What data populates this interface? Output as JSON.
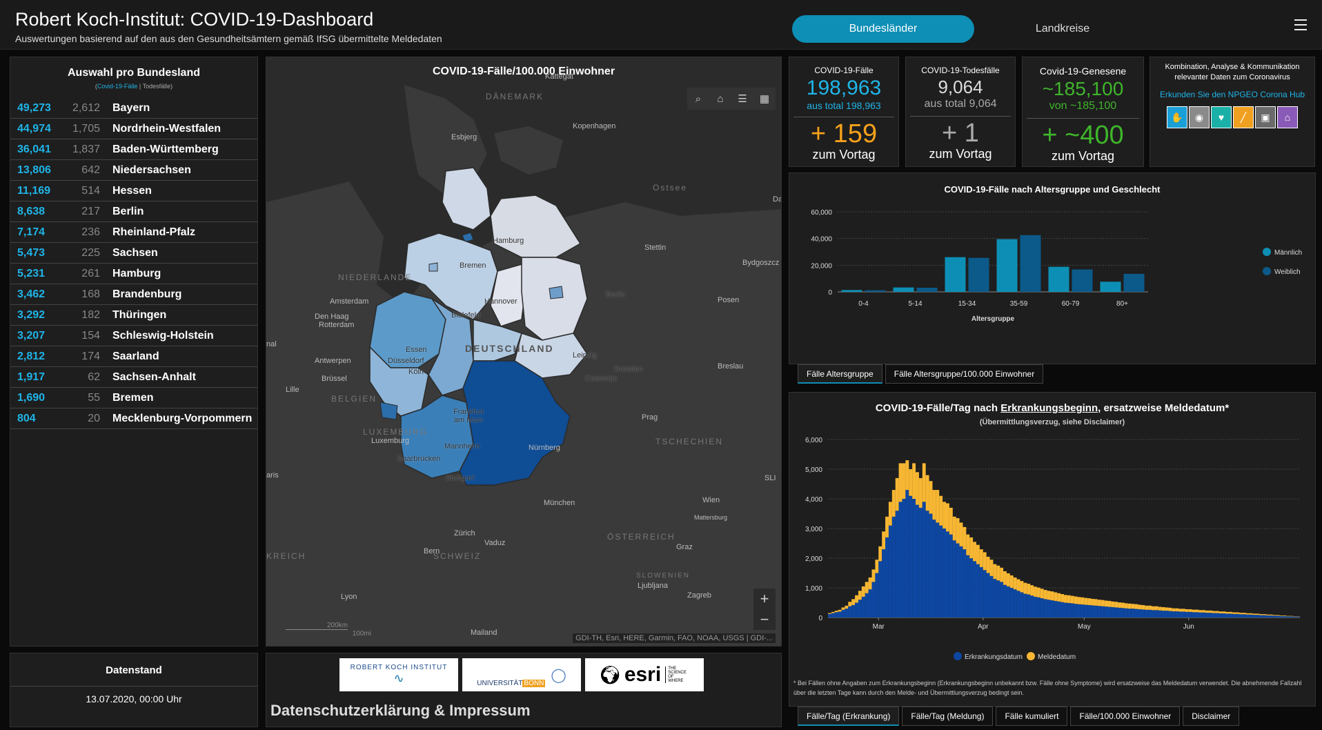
{
  "header": {
    "title": "Robert Koch-Institut: COVID-19-Dashboard",
    "subtitle": "Auswertungen basierend auf den aus den Gesundheitsämtern gemäß IfSG übermittelte Meldedaten",
    "tab_active": "Bundesländer",
    "tab_inactive": "Landkreise"
  },
  "states_panel": {
    "title": "Auswahl pro Bundesland",
    "legend_cases": "Covid-19-Fälle",
    "legend_sep": " | ",
    "legend_deaths": "Todesfälle",
    "rows": [
      {
        "cases": "49,273",
        "deaths": "2,612",
        "name": "Bayern"
      },
      {
        "cases": "44,974",
        "deaths": "1,705",
        "name": "Nordrhein-Westfalen"
      },
      {
        "cases": "36,041",
        "deaths": "1,837",
        "name": "Baden-Württemberg"
      },
      {
        "cases": "13,806",
        "deaths": "642",
        "name": "Niedersachsen"
      },
      {
        "cases": "11,169",
        "deaths": "514",
        "name": "Hessen"
      },
      {
        "cases": "8,638",
        "deaths": "217",
        "name": "Berlin"
      },
      {
        "cases": "7,174",
        "deaths": "236",
        "name": "Rheinland-Pfalz"
      },
      {
        "cases": "5,473",
        "deaths": "225",
        "name": "Sachsen"
      },
      {
        "cases": "5,231",
        "deaths": "261",
        "name": "Hamburg"
      },
      {
        "cases": "3,462",
        "deaths": "168",
        "name": "Brandenburg"
      },
      {
        "cases": "3,292",
        "deaths": "182",
        "name": "Thüringen"
      },
      {
        "cases": "3,207",
        "deaths": "154",
        "name": "Schleswig-Holstein"
      },
      {
        "cases": "2,812",
        "deaths": "174",
        "name": "Saarland"
      },
      {
        "cases": "1,917",
        "deaths": "62",
        "name": "Sachsen-Anhalt"
      },
      {
        "cases": "1,690",
        "deaths": "55",
        "name": "Bremen"
      },
      {
        "cases": "804",
        "deaths": "20",
        "name": "Mecklenburg-Vorpommern"
      }
    ]
  },
  "map": {
    "title": "COVID-19-Fälle/100.000 Einwohner",
    "attribution": "GDI-TH, Esri, HERE, Garmin, FAO, NOAA, USGS | GDI-...",
    "scale_km": "200km",
    "scale_mi": "100mi",
    "zoom_in": "+",
    "zoom_out": "−",
    "labels": {
      "kattegat": "Kattegat",
      "daenemark": "DÄNEMARK",
      "esbjerg": "Esbjerg",
      "kopenhagen": "Kopenhagen",
      "ostsee": "Ostsee",
      "hamburg": "Hamburg",
      "stettin": "Stettin",
      "bydgoszcz": "Bydgoszcz",
      "bremen": "Bremen",
      "niederlande": "NIEDERLANDE",
      "amsterdam": "Amsterdam",
      "denhaag": "Den Haag",
      "rotterdam": "Rotterdam",
      "hannover": "Hannover",
      "berlin": "Berlin",
      "posen": "Posen",
      "bielefeld": "Bielefeld",
      "deutschland": "DEUTSCHLAND",
      "essen": "Essen",
      "duesseldorf": "Düsseldorf",
      "koeln": "Köln",
      "leipzig": "Leipzig",
      "dresden": "Dresden",
      "chemnitz": "Chemnitz",
      "breslau": "Breslau",
      "antwerpen": "Antwerpen",
      "bruessel": "Brüssel",
      "lille": "Lille",
      "belgien": "BELGIEN",
      "frankfurt": "Frankfurt am Main",
      "prag": "Prag",
      "luxemburg_country": "LUXEMBURG",
      "luxemburg": "Luxemburg",
      "tschechien": "TSCHECHIEN",
      "mannheim": "Mannheim",
      "nuernberg": "Nürnberg",
      "saarbruecken": "Saarbrücken",
      "stuttgart": "Stuttgart",
      "muenchen": "München",
      "wien": "Wien",
      "mattersburg": "Mattersburg",
      "zuerich": "Zürich",
      "vaduz": "Vaduz",
      "oesterreich": "ÖSTERREICH",
      "graz": "Graz",
      "bern": "Bern",
      "schweiz": "SCHWEIZ",
      "kreich": "KREICH",
      "aris": "aris",
      "nal": "nal",
      "da": "Da",
      "sli": "SLI",
      "slowenien": "SLOWENIEN",
      "ljubljana": "Ljubljana",
      "zagreb": "Zagreb",
      "lyon": "Lyon",
      "mailand": "Mailand"
    }
  },
  "kpis": {
    "cases": {
      "label": "COVID-19-Fälle",
      "value": "198,963",
      "total": "aus total 198,963",
      "delta": "+ 159",
      "vortag": "zum Vortag"
    },
    "deaths": {
      "label": "COVID-19-Todesfälle",
      "value": "9,064",
      "total": "aus total 9,064",
      "delta": "+ 1",
      "vortag": "zum Vortag"
    },
    "recovered": {
      "label": "Covid-19-Genesene",
      "value": "~185,100",
      "total": "von ~185,100",
      "delta": "+ ~400",
      "vortag": "zum Vortag"
    }
  },
  "combo": {
    "text": "Kombination, Analyse & Kommunikation relevanter Daten zum Coronavirus",
    "link": "Erkunden Sie den NPGEO Corona Hub",
    "icons": [
      "hand-plant-icon",
      "map-pin-icon",
      "heart-pulse-icon",
      "road-icon",
      "car-icon",
      "building-icon"
    ]
  },
  "colors": {
    "accent": "#0e8fb6",
    "cases_blue": "#1fb5e8",
    "delta_orange": "#f7a21b",
    "recovered_green": "#3fb52b",
    "male": "#0d8fb5",
    "female": "#0b5a8a",
    "erkrankung": "#0d47a1",
    "melde": "#f7b733"
  },
  "age_chart_tabs": [
    "Fälle Altersgruppe",
    "Fälle Altersgruppe/100.000 Einwohner"
  ],
  "daily_chart_tabs": [
    "Fälle/Tag (Erkrankung)",
    "Fälle/Tag (Meldung)",
    "Fälle kumuliert",
    "Fälle/100.000 Einwohner",
    "Disclaimer"
  ],
  "daily_chart_text": {
    "title_pre": "COVID-19-Fälle/Tag nach ",
    "title_link": "Erkrankungsbeginn",
    "title_post": ", ersatzweise Meldedatum*",
    "subtitle": "(Übermittlungsverzug, siehe Disclaimer)",
    "footnote": "* Bei Fällen ohne Angaben zum Erkrankungsbeginn (Erkrankungsbeginn unbekannt bzw. Fälle ohne Symptome) wird ersatzweise das Meldedatum verwendet. Die abnehmende Fallzahl über die letzten Tage kann durch den Melde- und Übermittlungsverzug bedingt sein."
  },
  "stand": {
    "title": "Datenstand",
    "date": "13.07.2020, 00:00 Uhr"
  },
  "logos": {
    "rki": "ROBERT KOCH INSTITUT",
    "bonn": "UNIVERSITÄT",
    "bonn2": "BONN",
    "esri": "esri",
    "esri_tag": "THE SCIENCE OF WHERE"
  },
  "imprint": "Datenschutzerklärung & Impressum",
  "chart_data": [
    {
      "type": "bar",
      "title": "COVID-19-Fälle nach Altersgruppe und Geschlecht",
      "xlabel": "Altersgruppe",
      "ylabel": "",
      "categories": [
        "0-4",
        "5-14",
        "15-34",
        "35-59",
        "60-79",
        "80+"
      ],
      "series": [
        {
          "name": "Männlich",
          "values": [
            1400,
            3300,
            26000,
            39500,
            18800,
            7600
          ]
        },
        {
          "name": "Weiblich",
          "values": [
            1200,
            3100,
            25500,
            42500,
            16800,
            13500
          ]
        }
      ],
      "ylim": [
        0,
        60000
      ],
      "yticks": [
        "0",
        "20,000",
        "40,000",
        "60,000"
      ],
      "legend": "right"
    },
    {
      "type": "bar",
      "stacked": true,
      "title": "COVID-19-Fälle/Tag nach Erkrankungsbeginn, ersatzweise Meldedatum*",
      "x_start": "2020-02-15",
      "xticks": [
        "Mar",
        "Apr",
        "May",
        "Jun"
      ],
      "yticks": [
        "0",
        "1,000",
        "2,000",
        "3,000",
        "4,000",
        "5,000",
        "6,000"
      ],
      "ylim": [
        0,
        6000
      ],
      "legend": "bottom",
      "series": [
        {
          "name": "Erkrankungsdatum",
          "values": [
            120,
            150,
            180,
            200,
            260,
            300,
            380,
            420,
            500,
            600,
            700,
            820,
            950,
            1200,
            1500,
            1900,
            2300,
            2700,
            3100,
            3400,
            3600,
            3900,
            4000,
            4300,
            4100,
            4000,
            3800,
            3700,
            3900,
            3600,
            3500,
            3300,
            3200,
            3100,
            3000,
            2900,
            2800,
            2600,
            2500,
            2400,
            2300,
            2100,
            2000,
            1900,
            1800,
            1700,
            1600,
            1500,
            1400,
            1300,
            1250,
            1200,
            1100,
            1050,
            1000,
            950,
            900,
            850,
            800,
            780,
            740,
            700,
            680,
            650,
            620,
            600,
            580,
            560,
            540,
            520,
            500,
            490,
            480,
            460,
            450,
            440,
            430,
            420,
            410,
            400,
            390,
            380,
            370,
            360,
            350,
            340,
            330,
            320,
            310,
            300,
            300,
            290,
            280,
            270,
            260,
            260,
            250,
            250,
            240,
            230,
            230,
            220,
            210,
            210,
            200,
            200,
            190,
            190,
            180,
            180,
            170,
            170,
            160,
            160,
            150,
            150,
            140,
            140,
            130,
            130,
            120,
            120,
            110,
            110,
            100,
            100,
            90,
            90,
            80,
            80,
            70,
            70,
            60,
            60,
            50,
            50,
            40,
            40,
            30,
            30
          ]
        },
        {
          "name": "Meldedatum",
          "values": [
            30,
            40,
            50,
            60,
            80,
            100,
            150,
            200,
            250,
            300,
            350,
            380,
            400,
            420,
            450,
            500,
            600,
            700,
            800,
            900,
            1100,
            1300,
            1200,
            1000,
            900,
            1200,
            1100,
            1000,
            1300,
            1200,
            1100,
            1000,
            1100,
            1000,
            900,
            950,
            900,
            800,
            850,
            800,
            750,
            700,
            700,
            650,
            650,
            600,
            600,
            550,
            550,
            500,
            500,
            480,
            460,
            440,
            420,
            400,
            390,
            380,
            370,
            360,
            350,
            340,
            330,
            320,
            310,
            300,
            300,
            290,
            280,
            270,
            260,
            260,
            250,
            250,
            240,
            240,
            230,
            230,
            220,
            220,
            210,
            210,
            200,
            200,
            190,
            190,
            180,
            180,
            170,
            170,
            160,
            160,
            150,
            150,
            140,
            140,
            130,
            130,
            120,
            120,
            110,
            110,
            100,
            100,
            95,
            95,
            90,
            90,
            85,
            85,
            80,
            80,
            75,
            75,
            70,
            70,
            65,
            65,
            60,
            60,
            55,
            55,
            50,
            50,
            45,
            45,
            40,
            40,
            35,
            35,
            30,
            30,
            25,
            25,
            20,
            20,
            15,
            15,
            10,
            10
          ]
        }
      ]
    }
  ]
}
